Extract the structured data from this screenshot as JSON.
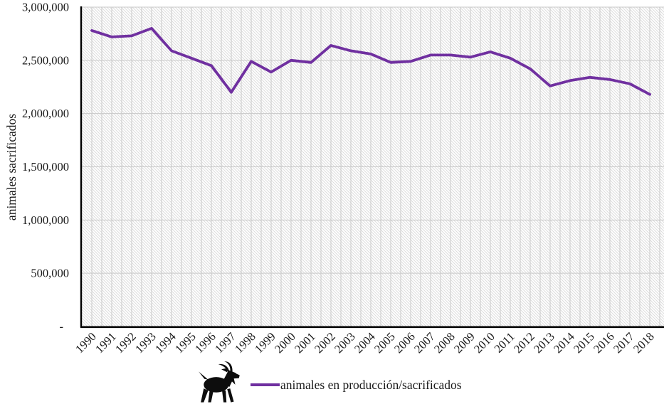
{
  "figure": {
    "kind": "excel-style line chart",
    "title": ""
  },
  "y_axis": {
    "label": "animales sacrificados",
    "tick_labels_bottom_to_top": [
      "-",
      "500,000",
      "1,000,000",
      "1,500,000",
      "2,000,000",
      "2,500,000",
      "3,000,000"
    ]
  },
  "x_axis": {
    "tick_labels_rotated_degrees": 45
  },
  "legend": {
    "label": "animales en producción/sacrificados",
    "icon": "goat-icon",
    "position": "bottom-center"
  },
  "colors": {
    "line": "#7030A0",
    "axis": "#000000",
    "gridline": "#c9c9c9",
    "hatch": "#dcdcdc",
    "background": "#ffffff",
    "goat": "#0d0d0d"
  },
  "chart_data": {
    "type": "line",
    "x": [
      1990,
      1991,
      1992,
      1993,
      1994,
      1995,
      1996,
      1997,
      1998,
      1999,
      2000,
      2001,
      2002,
      2003,
      2004,
      2005,
      2006,
      2007,
      2008,
      2009,
      2010,
      2011,
      2012,
      2013,
      2014,
      2015,
      2016,
      2017,
      2018
    ],
    "series": [
      {
        "name": "animales en producción/sacrificados",
        "values": [
          2780000,
          2720000,
          2730000,
          2800000,
          2590000,
          2520000,
          2450000,
          2200000,
          2490000,
          2390000,
          2500000,
          2480000,
          2640000,
          2590000,
          2560000,
          2480000,
          2490000,
          2550000,
          2550000,
          2530000,
          2580000,
          2520000,
          2420000,
          2260000,
          2310000,
          2340000,
          2320000,
          2280000,
          2180000
        ]
      }
    ],
    "title": "",
    "xlabel": "",
    "ylabel": "animales sacrificados",
    "ylim": [
      0,
      3000000
    ],
    "ytick_step": 500000,
    "ytick_labels": [
      "-",
      "500,000",
      "1,000,000",
      "1,500,000",
      "2,000,000",
      "2,500,000",
      "3,000,000"
    ],
    "grid": true,
    "plot_area_fill": "diagonal-hatch-pattern",
    "legend_position": "bottom"
  }
}
